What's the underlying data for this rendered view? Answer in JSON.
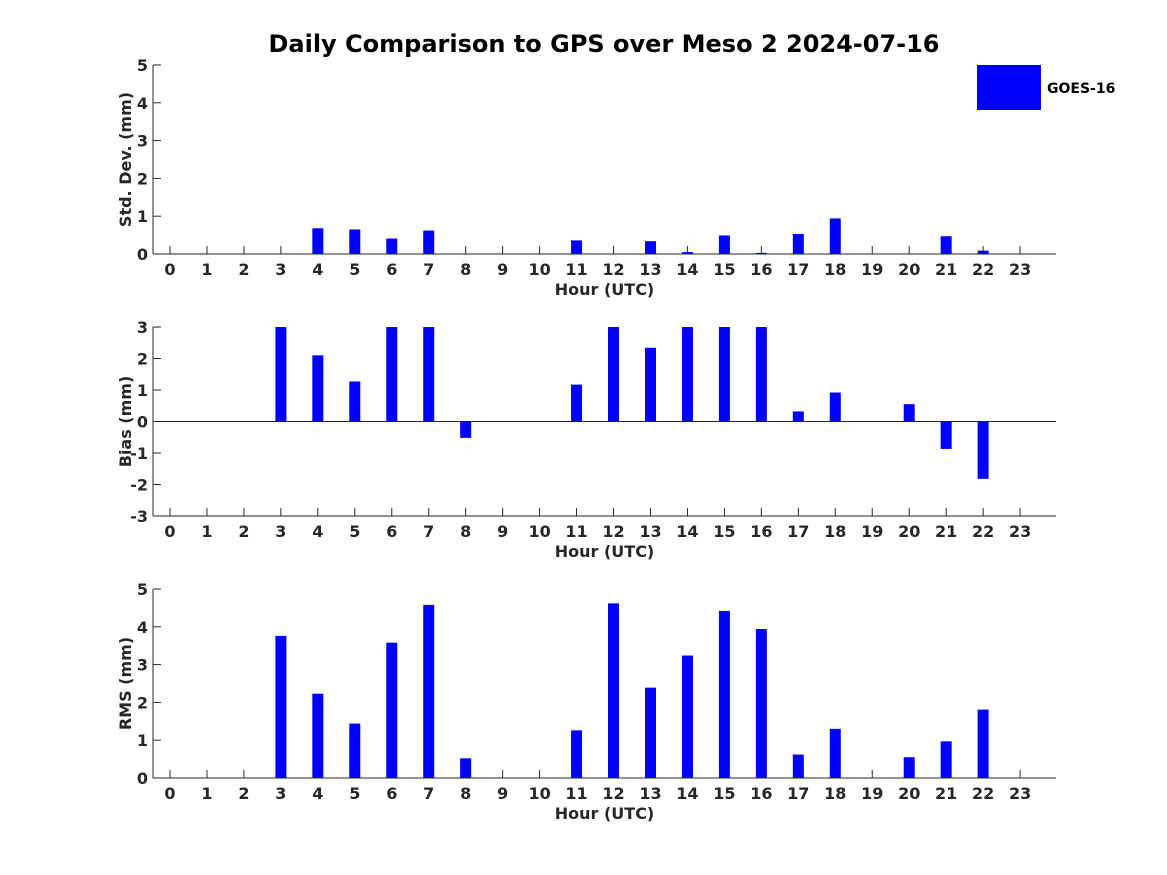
{
  "chart_data": {
    "type": "bar",
    "title": "Daily Comparison to GPS over Meso 2 2024-07-16",
    "legend": {
      "label": "GOES-16",
      "color": "#0000ff",
      "placement": "top-right"
    },
    "categories": [
      "0",
      "1",
      "2",
      "3",
      "4",
      "5",
      "6",
      "7",
      "8",
      "9",
      "10",
      "11",
      "12",
      "13",
      "14",
      "15",
      "16",
      "17",
      "18",
      "19",
      "20",
      "21",
      "22",
      "23"
    ],
    "panels": [
      {
        "id": "std-dev",
        "xlabel": "Hour (UTC)",
        "ylabel": "Std. Dev. (mm)",
        "ylim": [
          0,
          5
        ],
        "yticks": [
          0,
          1,
          2,
          3,
          4,
          5
        ],
        "series": [
          {
            "name": "GOES-16",
            "values": [
              null,
              null,
              null,
              null,
              0.68,
              0.65,
              0.41,
              0.62,
              null,
              null,
              null,
              0.36,
              null,
              0.34,
              0.05,
              0.49,
              0.03,
              0.53,
              0.94,
              null,
              null,
              0.47,
              0.09,
              null
            ]
          }
        ]
      },
      {
        "id": "bias",
        "xlabel": "Hour (UTC)",
        "ylabel": "Bias (mm)",
        "ylim": [
          -3,
          3
        ],
        "yticks": [
          -3,
          -2,
          -1,
          0,
          1,
          2,
          3
        ],
        "series": [
          {
            "name": "GOES-16",
            "values": [
              null,
              null,
              null,
              3.0,
              2.1,
              1.27,
              3.0,
              3.0,
              -0.52,
              null,
              null,
              1.17,
              3.0,
              2.34,
              3.0,
              3.0,
              3.0,
              0.32,
              0.92,
              null,
              0.55,
              -0.87,
              -1.82,
              null
            ]
          }
        ]
      },
      {
        "id": "rms",
        "xlabel": "Hour (UTC)",
        "ylabel": "RMS (mm)",
        "ylim": [
          0,
          5
        ],
        "yticks": [
          0,
          1,
          2,
          3,
          4,
          5
        ],
        "series": [
          {
            "name": "GOES-16",
            "values": [
              null,
              null,
              null,
              3.76,
              2.23,
              1.44,
              3.58,
              4.58,
              0.52,
              null,
              null,
              1.26,
              4.62,
              2.39,
              3.24,
              4.42,
              3.94,
              0.62,
              1.3,
              null,
              0.55,
              0.97,
              1.81,
              null
            ]
          }
        ]
      }
    ]
  }
}
